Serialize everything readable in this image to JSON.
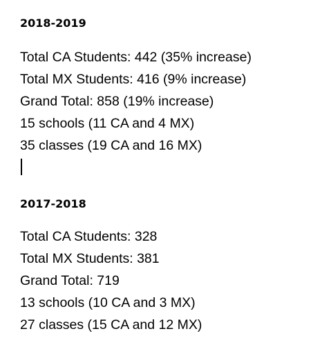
{
  "sections": [
    {
      "heading": "2018-2019",
      "lines": [
        "Total CA Students: 442 (35% increase)",
        "Total MX Students: 416 (9% increase)",
        "Grand Total: 858 (19% increase)",
        "15 schools (11 CA and 4 MX)",
        "35 classes (19 CA and 16 MX)"
      ]
    },
    {
      "heading": "2017-2018",
      "lines": [
        "Total CA Students: 328",
        "Total MX Students: 381",
        "Grand Total: 719",
        "13 schools (10 CA and 3 MX)",
        "27 classes (15 CA and 12 MX)"
      ]
    }
  ]
}
